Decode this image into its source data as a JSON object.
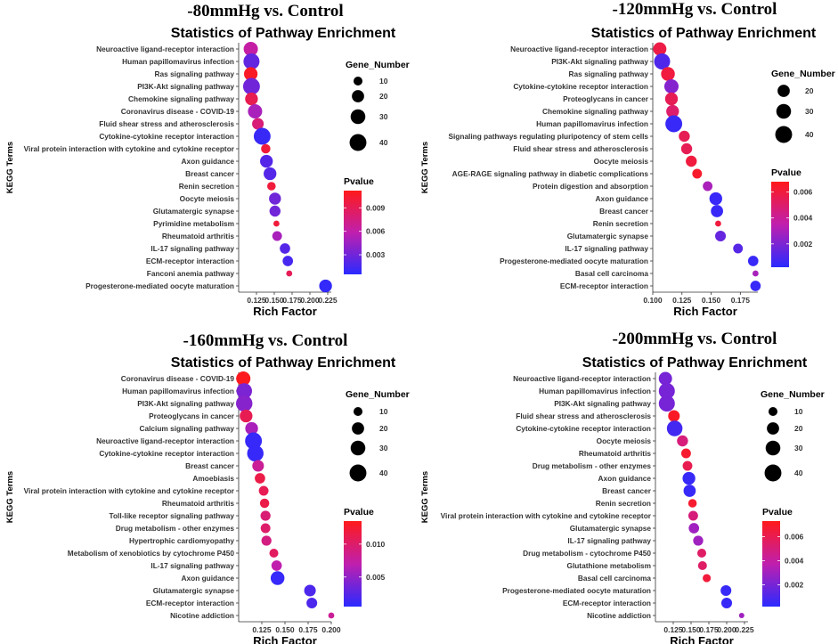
{
  "chart_data": [
    {
      "type": "scatter",
      "condition": "-80mmHg vs. Control",
      "title": "Statistics of Pathway Enrichment",
      "xlabel": "Rich Factor",
      "ylabel": "KEGG Terms",
      "xlim": [
        0.1,
        0.23
      ],
      "xticks": [
        0.125,
        0.15,
        0.175,
        0.2,
        0.225
      ],
      "xtick_labels": [
        "0.125",
        "0.150",
        "0.175",
        "0.200",
        "0.225"
      ],
      "size_legend": {
        "title": "Gene_Number",
        "values": [
          10,
          20,
          30,
          40
        ],
        "labels": [
          "10",
          "20",
          "30",
          "40"
        ]
      },
      "color_legend": {
        "title": "Pvalue",
        "range": [
          0.0005,
          0.0112
        ],
        "ticks": [
          0.003,
          0.006,
          0.009
        ],
        "tick_labels": [
          "0.003",
          "0.006",
          "0.009"
        ],
        "low_color": "#2a2aff",
        "high_color": "#ff1a1a"
      },
      "points": [
        {
          "term": "Neuroactive ligand-receptor interaction",
          "rich_factor": 0.117,
          "gene_number": 28,
          "pvalue": 0.0062
        },
        {
          "term": "Human papillomavirus infection",
          "rich_factor": 0.118,
          "gene_number": 36,
          "pvalue": 0.0025
        },
        {
          "term": "Ras signaling pathway",
          "rich_factor": 0.117,
          "gene_number": 25,
          "pvalue": 0.0108
        },
        {
          "term": "PI3K-Akt signaling pathway",
          "rich_factor": 0.118,
          "gene_number": 40,
          "pvalue": 0.003
        },
        {
          "term": "Chemokine signaling pathway",
          "rich_factor": 0.118,
          "gene_number": 22,
          "pvalue": 0.0092
        },
        {
          "term": "Coronavirus disease - COVID-19",
          "rich_factor": 0.123,
          "gene_number": 28,
          "pvalue": 0.005
        },
        {
          "term": "Fluid shear stress and atherosclerosis",
          "rich_factor": 0.127,
          "gene_number": 18,
          "pvalue": 0.0078
        },
        {
          "term": "Cytokine-cytokine receptor interaction",
          "rich_factor": 0.133,
          "gene_number": 40,
          "pvalue": 0.001
        },
        {
          "term": "Viral protein interaction with cytokine and cytokine receptor",
          "rich_factor": 0.138,
          "gene_number": 11,
          "pvalue": 0.01
        },
        {
          "term": "Axon guidance",
          "rich_factor": 0.139,
          "gene_number": 22,
          "pvalue": 0.002
        },
        {
          "term": "Breast cancer",
          "rich_factor": 0.144,
          "gene_number": 22,
          "pvalue": 0.002
        },
        {
          "term": "Renin secretion",
          "rich_factor": 0.146,
          "gene_number": 9,
          "pvalue": 0.01
        },
        {
          "term": "Oocyte meiosis",
          "rich_factor": 0.151,
          "gene_number": 19,
          "pvalue": 0.003
        },
        {
          "term": "Glutamatergic synapse",
          "rich_factor": 0.151,
          "gene_number": 16,
          "pvalue": 0.003
        },
        {
          "term": "Pyrimidine metabolism",
          "rich_factor": 0.153,
          "gene_number": 4,
          "pvalue": 0.01
        },
        {
          "term": "Rheumatoid arthritis",
          "rich_factor": 0.154,
          "gene_number": 12,
          "pvalue": 0.005
        },
        {
          "term": "IL-17 signaling pathway",
          "rich_factor": 0.165,
          "gene_number": 14,
          "pvalue": 0.002
        },
        {
          "term": "ECM-receptor interaction",
          "rich_factor": 0.169,
          "gene_number": 14,
          "pvalue": 0.0015
        },
        {
          "term": "Fanconi anemia pathway",
          "rich_factor": 0.171,
          "gene_number": 4,
          "pvalue": 0.009
        },
        {
          "term": "Progesterone-mediated oocyte maturation",
          "rich_factor": 0.222,
          "gene_number": 22,
          "pvalue": 0.0008
        }
      ]
    },
    {
      "type": "scatter",
      "condition": "-120mmHg vs. Control",
      "title": "Statistics of Pathway Enrichment",
      "xlabel": "Rich Factor",
      "ylabel": "KEGG Terms",
      "xlim": [
        0.1,
        0.19
      ],
      "xticks": [
        0.1,
        0.125,
        0.15,
        0.175
      ],
      "xtick_labels": [
        "0.100",
        "0.125",
        "0.150",
        "0.175"
      ],
      "size_legend": {
        "title": "Gene_Number",
        "values": [
          20,
          30,
          40
        ],
        "labels": [
          "20",
          "30",
          "40"
        ]
      },
      "color_legend": {
        "title": "Pvalue",
        "range": [
          0.0002,
          0.0068
        ],
        "ticks": [
          0.002,
          0.004,
          0.006
        ],
        "tick_labels": [
          "0.002",
          "0.004",
          "0.006"
        ],
        "low_color": "#2a2aff",
        "high_color": "#ff1a1a"
      },
      "points": [
        {
          "term": "Neuroactive ligand-receptor interaction",
          "rich_factor": 0.106,
          "gene_number": 24,
          "pvalue": 0.0058
        },
        {
          "term": "PI3K-Akt signaling pathway",
          "rich_factor": 0.108,
          "gene_number": 36,
          "pvalue": 0.001
        },
        {
          "term": "Ras signaling pathway",
          "rich_factor": 0.113,
          "gene_number": 26,
          "pvalue": 0.006
        },
        {
          "term": "Cytokine-cytokine receptor interaction",
          "rich_factor": 0.116,
          "gene_number": 28,
          "pvalue": 0.0022
        },
        {
          "term": "Proteoglycans in cancer",
          "rich_factor": 0.116,
          "gene_number": 22,
          "pvalue": 0.0055
        },
        {
          "term": "Chemokine signaling pathway",
          "rich_factor": 0.117,
          "gene_number": 22,
          "pvalue": 0.005
        },
        {
          "term": "Human papillomavirus infection",
          "rich_factor": 0.118,
          "gene_number": 40,
          "pvalue": 0.0005
        },
        {
          "term": "Signaling pathways regulating pluripotency of stem cells",
          "rich_factor": 0.127,
          "gene_number": 16,
          "pvalue": 0.0055
        },
        {
          "term": "Fluid shear stress and atherosclerosis",
          "rich_factor": 0.129,
          "gene_number": 16,
          "pvalue": 0.0055
        },
        {
          "term": "Oocyte meiosis",
          "rich_factor": 0.133,
          "gene_number": 16,
          "pvalue": 0.006
        },
        {
          "term": "AGE-RAGE signaling pathway in diabetic complications",
          "rich_factor": 0.138,
          "gene_number": 12,
          "pvalue": 0.0064
        },
        {
          "term": "Protein digestion and absorption",
          "rich_factor": 0.147,
          "gene_number": 12,
          "pvalue": 0.003
        },
        {
          "term": "Axon guidance",
          "rich_factor": 0.154,
          "gene_number": 22,
          "pvalue": 0.0005
        },
        {
          "term": "Breast cancer",
          "rich_factor": 0.155,
          "gene_number": 20,
          "pvalue": 0.0005
        },
        {
          "term": "Renin secretion",
          "rich_factor": 0.156,
          "gene_number": 4,
          "pvalue": 0.006
        },
        {
          "term": "Glutamatergic synapse",
          "rich_factor": 0.158,
          "gene_number": 15,
          "pvalue": 0.0015
        },
        {
          "term": "IL-17 signaling pathway",
          "rich_factor": 0.173,
          "gene_number": 12,
          "pvalue": 0.0012
        },
        {
          "term": "Progesterone-mediated oocyte maturation",
          "rich_factor": 0.186,
          "gene_number": 14,
          "pvalue": 0.0005
        },
        {
          "term": "Basal cell carcinoma",
          "rich_factor": 0.188,
          "gene_number": 4,
          "pvalue": 0.003
        },
        {
          "term": "ECM-receptor interaction",
          "rich_factor": 0.188,
          "gene_number": 14,
          "pvalue": 0.0005
        }
      ]
    },
    {
      "type": "scatter",
      "condition": "-160mmHg vs. Control",
      "title": "Statistics of Pathway Enrichment",
      "xlabel": "Rich Factor",
      "ylabel": "KEGG Terms",
      "xlim": [
        0.1,
        0.2
      ],
      "xticks": [
        0.125,
        0.15,
        0.175,
        0.2
      ],
      "xtick_labels": [
        "0.125",
        "0.150",
        "0.175",
        "0.200"
      ],
      "size_legend": {
        "title": "Gene_Number",
        "values": [
          10,
          20,
          30,
          40
        ],
        "labels": [
          "10",
          "20",
          "30",
          "40"
        ]
      },
      "color_legend": {
        "title": "Pvalue",
        "range": [
          0.0005,
          0.0135
        ],
        "ticks": [
          0.005,
          0.01
        ],
        "tick_labels": [
          "0.005",
          "0.010"
        ],
        "low_color": "#2a2aff",
        "high_color": "#ff1a1a"
      },
      "points": [
        {
          "term": "Coronavirus disease - COVID-19",
          "rich_factor": 0.105,
          "gene_number": 28,
          "pvalue": 0.0133
        },
        {
          "term": "Human papillomavirus infection",
          "rich_factor": 0.106,
          "gene_number": 34,
          "pvalue": 0.004
        },
        {
          "term": "PI3K-Akt signaling pathway",
          "rich_factor": 0.106,
          "gene_number": 38,
          "pvalue": 0.0045
        },
        {
          "term": "Proteoglycans in cancer",
          "rich_factor": 0.108,
          "gene_number": 22,
          "pvalue": 0.011
        },
        {
          "term": "Calcium signaling pathway",
          "rich_factor": 0.114,
          "gene_number": 22,
          "pvalue": 0.006
        },
        {
          "term": "Neuroactive ligand-receptor interaction",
          "rich_factor": 0.116,
          "gene_number": 40,
          "pvalue": 0.001
        },
        {
          "term": "Cytokine-cytokine receptor interaction",
          "rich_factor": 0.118,
          "gene_number": 38,
          "pvalue": 0.001
        },
        {
          "term": "Breast cancer",
          "rich_factor": 0.121,
          "gene_number": 18,
          "pvalue": 0.008
        },
        {
          "term": "Amoebiasis",
          "rich_factor": 0.123,
          "gene_number": 14,
          "pvalue": 0.0115
        },
        {
          "term": "Viral protein interaction with cytokine and cytokine receptor",
          "rich_factor": 0.127,
          "gene_number": 12,
          "pvalue": 0.011
        },
        {
          "term": "Rheumatoid arthritis",
          "rich_factor": 0.128,
          "gene_number": 11,
          "pvalue": 0.0115
        },
        {
          "term": "Toll-like receptor signaling pathway",
          "rich_factor": 0.129,
          "gene_number": 13,
          "pvalue": 0.0095
        },
        {
          "term": "Drug metabolism - other enzymes",
          "rich_factor": 0.129,
          "gene_number": 12,
          "pvalue": 0.01
        },
        {
          "term": "Hypertrophic cardiomyopathy",
          "rich_factor": 0.13,
          "gene_number": 13,
          "pvalue": 0.009
        },
        {
          "term": "Metabolism of xenobiotics by cytochrome P450",
          "rich_factor": 0.138,
          "gene_number": 10,
          "pvalue": 0.0105
        },
        {
          "term": "IL-17 signaling pathway",
          "rich_factor": 0.141,
          "gene_number": 14,
          "pvalue": 0.007
        },
        {
          "term": "Axon guidance",
          "rich_factor": 0.142,
          "gene_number": 26,
          "pvalue": 0.001
        },
        {
          "term": "Glutamatergic synapse",
          "rich_factor": 0.177,
          "gene_number": 18,
          "pvalue": 0.002
        },
        {
          "term": "ECM-receptor interaction",
          "rich_factor": 0.179,
          "gene_number": 15,
          "pvalue": 0.002
        },
        {
          "term": "Nicotine addiction",
          "rich_factor": 0.2,
          "gene_number": 4,
          "pvalue": 0.008
        }
      ]
    },
    {
      "type": "scatter",
      "condition": "-200mmHg vs. Control",
      "title": "Statistics of Pathway Enrichment",
      "xlabel": "Rich Factor",
      "ylabel": "KEGG Terms",
      "xlim": [
        0.1,
        0.23
      ],
      "xticks": [
        0.125,
        0.15,
        0.175,
        0.2,
        0.225
      ],
      "xtick_labels": [
        "0.125",
        "0.150",
        "0.175",
        "0.200",
        "0.225"
      ],
      "size_legend": {
        "title": "Gene_Number",
        "values": [
          10,
          20,
          30,
          40
        ],
        "labels": [
          "10",
          "20",
          "30",
          "40"
        ]
      },
      "color_legend": {
        "title": "Pvalue",
        "range": [
          0.0002,
          0.0073
        ],
        "ticks": [
          0.002,
          0.004,
          0.006
        ],
        "tick_labels": [
          "0.002",
          "0.004",
          "0.006"
        ],
        "low_color": "#2a2aff",
        "high_color": "#ff1a1a"
      },
      "points": [
        {
          "term": "Neuroactive ligand-receptor interaction",
          "rich_factor": 0.114,
          "gene_number": 24,
          "pvalue": 0.002
        },
        {
          "term": "Human papillomavirus infection",
          "rich_factor": 0.116,
          "gene_number": 36,
          "pvalue": 0.002
        },
        {
          "term": "PI3K-Akt signaling pathway",
          "rich_factor": 0.116,
          "gene_number": 36,
          "pvalue": 0.002
        },
        {
          "term": "Fluid shear stress and atherosclerosis",
          "rich_factor": 0.126,
          "gene_number": 18,
          "pvalue": 0.007
        },
        {
          "term": "Cytokine-cytokine receptor interaction",
          "rich_factor": 0.127,
          "gene_number": 34,
          "pvalue": 0.0008
        },
        {
          "term": "Oocyte meiosis",
          "rich_factor": 0.138,
          "gene_number": 16,
          "pvalue": 0.005
        },
        {
          "term": "Rheumatoid arthritis",
          "rich_factor": 0.143,
          "gene_number": 12,
          "pvalue": 0.0068
        },
        {
          "term": "Drug metabolism - other enzymes",
          "rich_factor": 0.145,
          "gene_number": 12,
          "pvalue": 0.006
        },
        {
          "term": "Axon guidance",
          "rich_factor": 0.147,
          "gene_number": 22,
          "pvalue": 0.0005
        },
        {
          "term": "Breast cancer",
          "rich_factor": 0.148,
          "gene_number": 20,
          "pvalue": 0.0005
        },
        {
          "term": "Renin secretion",
          "rich_factor": 0.152,
          "gene_number": 9,
          "pvalue": 0.0068
        },
        {
          "term": "Viral protein interaction with cytokine and cytokine receptor",
          "rich_factor": 0.153,
          "gene_number": 12,
          "pvalue": 0.005
        },
        {
          "term": "Glutamatergic synapse",
          "rich_factor": 0.154,
          "gene_number": 14,
          "pvalue": 0.003
        },
        {
          "term": "IL-17 signaling pathway",
          "rich_factor": 0.16,
          "gene_number": 13,
          "pvalue": 0.003
        },
        {
          "term": "Drug metabolism - cytochrome P450",
          "rich_factor": 0.165,
          "gene_number": 10,
          "pvalue": 0.0055
        },
        {
          "term": "Glutathione metabolism",
          "rich_factor": 0.166,
          "gene_number": 10,
          "pvalue": 0.0055
        },
        {
          "term": "Basal cell carcinoma",
          "rich_factor": 0.172,
          "gene_number": 8,
          "pvalue": 0.0065
        },
        {
          "term": "Progesterone-mediated oocyte maturation",
          "rich_factor": 0.199,
          "gene_number": 15,
          "pvalue": 0.0005
        },
        {
          "term": "ECM-receptor interaction",
          "rich_factor": 0.2,
          "gene_number": 15,
          "pvalue": 0.0005
        },
        {
          "term": "Nicotine addiction",
          "rich_factor": 0.221,
          "gene_number": 3,
          "pvalue": 0.003
        }
      ]
    }
  ]
}
